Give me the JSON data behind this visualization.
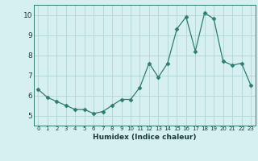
{
  "x": [
    0,
    1,
    2,
    3,
    4,
    5,
    6,
    7,
    8,
    9,
    10,
    11,
    12,
    13,
    14,
    15,
    16,
    17,
    18,
    19,
    20,
    21,
    22,
    23
  ],
  "y": [
    6.3,
    5.9,
    5.7,
    5.5,
    5.3,
    5.3,
    5.1,
    5.2,
    5.5,
    5.8,
    5.8,
    6.4,
    7.6,
    6.9,
    7.6,
    9.3,
    9.9,
    8.2,
    10.1,
    9.8,
    7.7,
    7.5,
    7.6,
    6.5
  ],
  "xlim": [
    -0.5,
    23.5
  ],
  "ylim": [
    4.5,
    10.5
  ],
  "yticks": [
    5,
    6,
    7,
    8,
    9,
    10
  ],
  "xticks": [
    0,
    1,
    2,
    3,
    4,
    5,
    6,
    7,
    8,
    9,
    10,
    11,
    12,
    13,
    14,
    15,
    16,
    17,
    18,
    19,
    20,
    21,
    22,
    23
  ],
  "xlabel": "Humidex (Indice chaleur)",
  "line_color": "#2e7d6e",
  "marker": "D",
  "marker_size": 2.5,
  "background_color": "#d6f0f0",
  "grid_color": "#b0d4d4"
}
